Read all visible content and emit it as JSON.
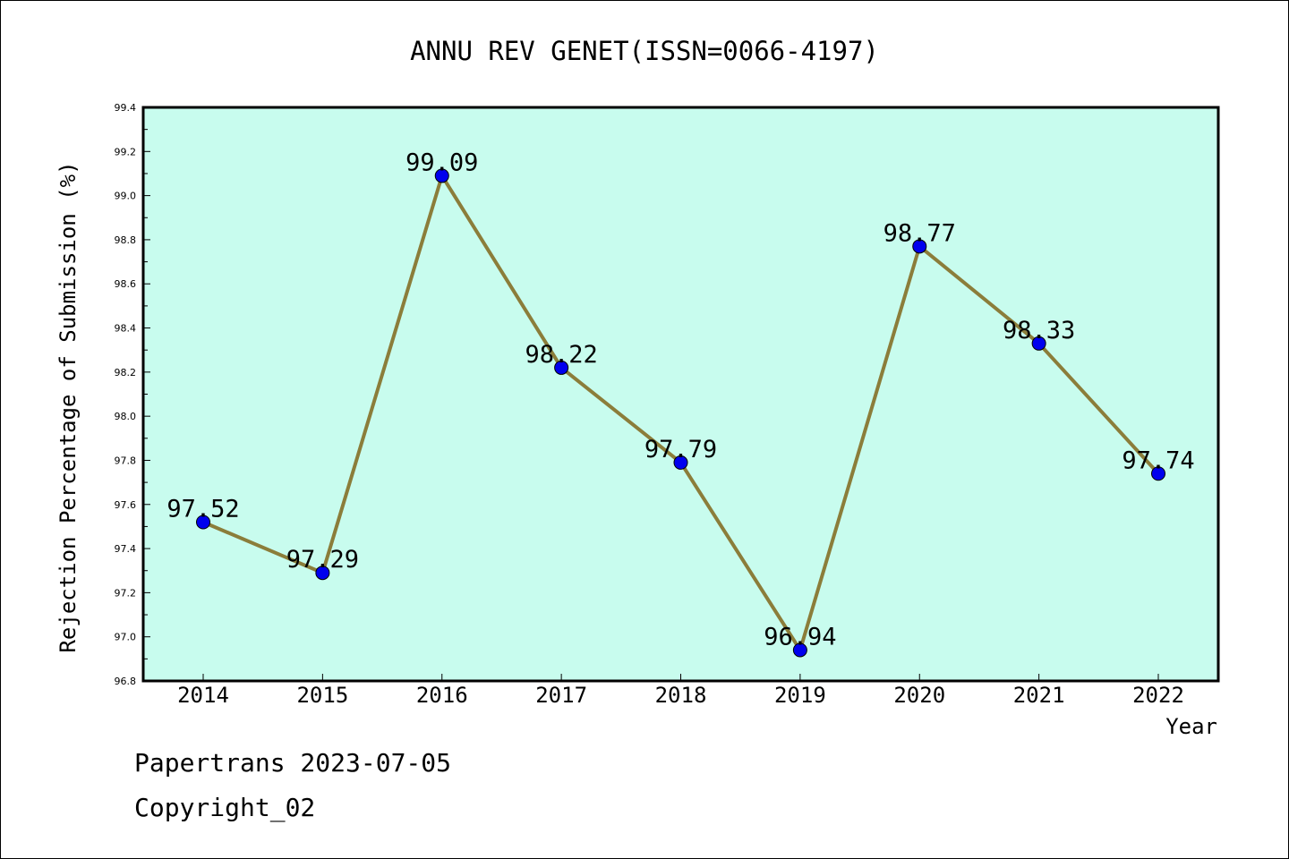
{
  "chart_data": {
    "type": "line",
    "title": "ANNU REV GENET(ISSN=0066-4197)",
    "xlabel": "Year",
    "ylabel": "Rejection Percentage of Submission (%)",
    "categories": [
      "2014",
      "2015",
      "2016",
      "2017",
      "2018",
      "2019",
      "2020",
      "2021",
      "2022"
    ],
    "values": [
      97.52,
      97.29,
      99.09,
      98.22,
      97.79,
      96.94,
      98.77,
      98.33,
      97.74
    ],
    "value_labels": [
      "97.52",
      "97.29",
      "99.09",
      "98.22",
      "97.79",
      "96.94",
      "98.77",
      "98.33",
      "97.74"
    ],
    "ylim": [
      96.8,
      99.4
    ],
    "yticks": [
      "96.8",
      "97.0",
      "97.2",
      "97.4",
      "97.6",
      "97.8",
      "98.0",
      "98.2",
      "98.4",
      "98.6",
      "98.8",
      "99.0",
      "99.2",
      "99.4"
    ],
    "grid": false,
    "colors": {
      "plot_background": "#c8fcee",
      "line": "#8b7d3a",
      "marker": "#0000ee"
    }
  },
  "footer": {
    "line1": "Papertrans 2023-07-05",
    "line2": "Copyright_02"
  }
}
